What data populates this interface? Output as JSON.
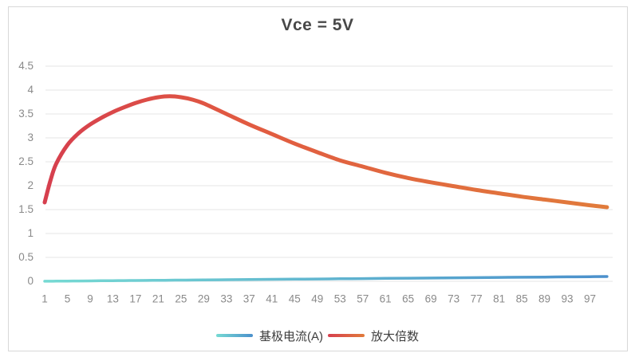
{
  "title": "Vce = 5V",
  "legend": {
    "position": "bottom",
    "items": [
      {
        "label": "基极电流(A)",
        "color_start": "#76dad3",
        "color_end": "#4b90cc"
      },
      {
        "label": "放大倍数",
        "color_start": "#d63f4e",
        "color_end": "#e17b3b"
      }
    ]
  },
  "chart_data": {
    "type": "line",
    "title": "Vce = 5V",
    "xlabel": "",
    "ylabel": "",
    "ylim": [
      0,
      4.5
    ],
    "y_tick_step": 0.5,
    "y_tick_labels": [
      "0",
      "0.5",
      "1",
      "1.5",
      "2",
      "2.5",
      "3",
      "3.5",
      "4",
      "4.5"
    ],
    "x_tick_labels": [
      1,
      5,
      9,
      13,
      17,
      21,
      25,
      29,
      33,
      37,
      41,
      45,
      49,
      53,
      57,
      61,
      65,
      69,
      73,
      77,
      81,
      85,
      89,
      93,
      97
    ],
    "xlim": [
      1,
      100
    ],
    "grid": true,
    "legend_position": "bottom",
    "x": [
      1,
      2,
      3,
      5,
      7,
      9,
      11,
      13,
      15,
      17,
      19,
      21,
      23,
      25,
      27,
      29,
      33,
      37,
      41,
      45,
      49,
      53,
      57,
      61,
      65,
      69,
      73,
      77,
      81,
      85,
      89,
      93,
      97,
      100
    ],
    "series": [
      {
        "name": "基极电流(A)",
        "values": [
          0.001,
          0.002,
          0.003,
          0.005,
          0.007,
          0.009,
          0.011,
          0.013,
          0.015,
          0.017,
          0.019,
          0.021,
          0.023,
          0.025,
          0.027,
          0.029,
          0.033,
          0.037,
          0.041,
          0.045,
          0.049,
          0.053,
          0.057,
          0.061,
          0.065,
          0.069,
          0.073,
          0.077,
          0.081,
          0.085,
          0.089,
          0.093,
          0.097,
          0.1
        ],
        "color_start": "#76dad3",
        "color_end": "#4b90cc",
        "stroke_width": 3.5
      },
      {
        "name": "放大倍数",
        "values": [
          1.65,
          2.1,
          2.45,
          2.85,
          3.1,
          3.28,
          3.42,
          3.54,
          3.64,
          3.73,
          3.8,
          3.85,
          3.87,
          3.85,
          3.8,
          3.72,
          3.5,
          3.28,
          3.08,
          2.88,
          2.7,
          2.53,
          2.4,
          2.27,
          2.16,
          2.07,
          1.99,
          1.91,
          1.84,
          1.77,
          1.71,
          1.65,
          1.59,
          1.55
        ],
        "color_start": "#d63f4e",
        "color_mid": "#e15a41",
        "color_end": "#e17b3b",
        "stroke_width": 5
      }
    ]
  }
}
